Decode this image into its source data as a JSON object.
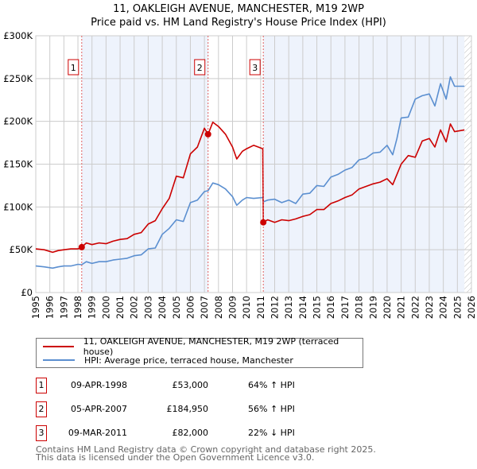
{
  "title_line1": "11, OAKLEIGH AVENUE, MANCHESTER, M19 2WP",
  "title_line2": "Price paid vs. HM Land Registry's House Price Index (HPI)",
  "colors": {
    "property": "#cc0000",
    "hpi": "#5b8fd0",
    "shade": "#eef3fc"
  },
  "chart_data": {
    "type": "line",
    "ylim": [
      0,
      300000
    ],
    "xlim": [
      1995,
      2026
    ],
    "yticks": [
      {
        "v": 0,
        "label": "£0"
      },
      {
        "v": 50000,
        "label": "£50K"
      },
      {
        "v": 100000,
        "label": "£100K"
      },
      {
        "v": 150000,
        "label": "£150K"
      },
      {
        "v": 200000,
        "label": "£200K"
      },
      {
        "v": 250000,
        "label": "£250K"
      },
      {
        "v": 300000,
        "label": "£300K"
      }
    ],
    "xticks": [
      "1995",
      "1996",
      "1997",
      "1998",
      "1999",
      "2000",
      "2001",
      "2002",
      "2003",
      "2004",
      "2005",
      "2006",
      "2007",
      "2008",
      "2009",
      "2010",
      "2011",
      "2012",
      "2013",
      "2014",
      "2015",
      "2016",
      "2017",
      "2018",
      "2019",
      "2020",
      "2021",
      "2022",
      "2023",
      "2024",
      "2025",
      "2026"
    ],
    "series": [
      {
        "name": "11, OAKLEIGH AVENUE, MANCHESTER, M19 2WP (terraced house)",
        "x": [
          1995,
          1995.6,
          1996.2,
          1996.6,
          1997,
          1997.5,
          1998,
          1998.27,
          1998.6,
          1999,
          1999.5,
          2000,
          2000.5,
          2001,
          2001.5,
          2002,
          2002.5,
          2003,
          2003.5,
          2004,
          2004.5,
          2005,
          2005.5,
          2006,
          2006.5,
          2007,
          2007.26,
          2007.6,
          2008,
          2008.5,
          2009,
          2009.3,
          2009.7,
          2010,
          2010.5,
          2011.15,
          2011.19,
          2011.5,
          2012,
          2012.5,
          2013,
          2013.5,
          2014,
          2014.5,
          2015,
          2015.5,
          2016,
          2016.5,
          2017,
          2017.5,
          2018,
          2018.5,
          2019,
          2019.5,
          2020,
          2020.4,
          2020.7,
          2021,
          2021.5,
          2022,
          2022.5,
          2023,
          2023.4,
          2023.8,
          2024.2,
          2024.5,
          2024.8,
          2025.5
        ],
        "y": [
          51000,
          50000,
          47000,
          49000,
          50000,
          51000,
          51000,
          53000,
          58000,
          56000,
          58000,
          57000,
          60000,
          62000,
          63000,
          68000,
          70000,
          80000,
          84000,
          98000,
          110000,
          136000,
          134000,
          162000,
          170000,
          192000,
          184950,
          199000,
          194000,
          185000,
          170000,
          156000,
          165000,
          168000,
          172000,
          168000,
          82000,
          85000,
          82000,
          85000,
          84000,
          86000,
          89000,
          91000,
          97000,
          97000,
          104000,
          107000,
          111000,
          114000,
          121000,
          124000,
          127000,
          129000,
          133000,
          126000,
          138000,
          150000,
          160000,
          158000,
          177000,
          180000,
          170000,
          190000,
          176000,
          197000,
          188000,
          190000
        ]
      },
      {
        "name": "HPI: Average price, terraced house, Manchester",
        "x": [
          1995,
          1995.6,
          1996.2,
          1996.6,
          1997,
          1997.5,
          1998,
          1998.27,
          1998.6,
          1999,
          1999.5,
          2000,
          2000.5,
          2001,
          2001.5,
          2002,
          2002.5,
          2003,
          2003.5,
          2004,
          2004.5,
          2005,
          2005.5,
          2006,
          2006.5,
          2007,
          2007.26,
          2007.6,
          2008,
          2008.5,
          2009,
          2009.3,
          2009.7,
          2010,
          2010.5,
          2011.15,
          2011.19,
          2011.5,
          2012,
          2012.5,
          2013,
          2013.5,
          2014,
          2014.5,
          2015,
          2015.5,
          2016,
          2016.5,
          2017,
          2017.5,
          2018,
          2018.5,
          2019,
          2019.5,
          2020,
          2020.4,
          2020.7,
          2021,
          2021.5,
          2022,
          2022.5,
          2023,
          2023.4,
          2023.8,
          2024.2,
          2024.5,
          2024.8,
          2025.5
        ],
        "y": [
          31000,
          30000,
          28500,
          30000,
          31000,
          31000,
          33000,
          32500,
          36000,
          34000,
          36000,
          36000,
          38000,
          39000,
          40000,
          43000,
          44000,
          51000,
          52000,
          68000,
          75000,
          85000,
          83000,
          105000,
          108000,
          118000,
          119000,
          128000,
          126000,
          121000,
          112000,
          102000,
          108000,
          111000,
          110000,
          111000,
          106000,
          108000,
          109000,
          105000,
          108000,
          104000,
          115000,
          116000,
          125000,
          124000,
          135000,
          138000,
          143000,
          146000,
          155000,
          157000,
          163000,
          164000,
          172000,
          161000,
          180000,
          204000,
          205000,
          226000,
          230000,
          232000,
          218000,
          244000,
          226000,
          252000,
          241000,
          241000
        ]
      }
    ],
    "sales": [
      {
        "label": "1",
        "x": 1998.27,
        "y": 53000
      },
      {
        "label": "2",
        "x": 2007.26,
        "y": 184950
      },
      {
        "label": "3",
        "x": 2011.19,
        "y": 82000
      }
    ]
  },
  "legend": [
    {
      "label": "11, OAKLEIGH AVENUE, MANCHESTER, M19 2WP (terraced house)"
    },
    {
      "label": "HPI: Average price, terraced house, Manchester"
    }
  ],
  "transactions": [
    {
      "num": "1",
      "date": "09-APR-1998",
      "price": "£53,000",
      "hpi": "64% ↑ HPI"
    },
    {
      "num": "2",
      "date": "05-APR-2007",
      "price": "£184,950",
      "hpi": "56% ↑ HPI"
    },
    {
      "num": "3",
      "date": "09-MAR-2011",
      "price": "£82,000",
      "hpi": "22% ↓ HPI"
    }
  ],
  "footer_line1": "Contains HM Land Registry data © Crown copyright and database right 2025.",
  "footer_line2": "This data is licensed under the Open Government Licence v3.0."
}
